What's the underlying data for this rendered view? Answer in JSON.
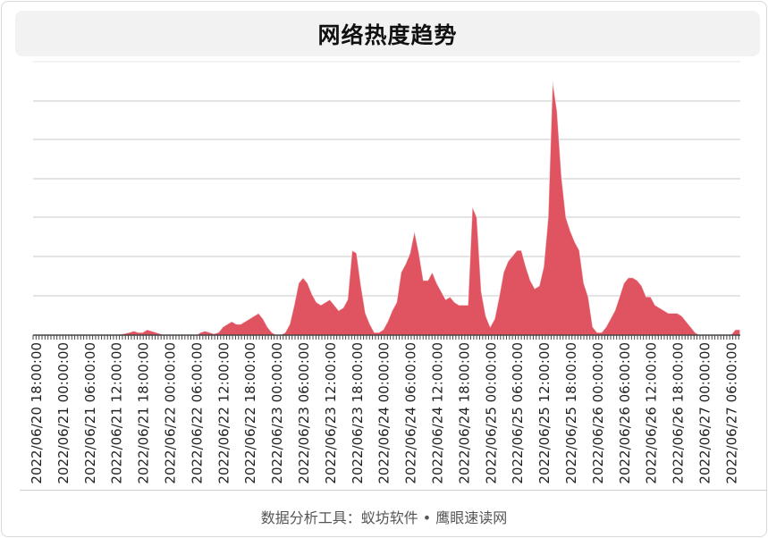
{
  "chart_data": {
    "type": "area",
    "title": "网络热度趋势",
    "xlabel": "",
    "ylabel": "",
    "color": "#e05461",
    "grid": true,
    "ylim": [
      0,
      100
    ],
    "tick_labels": [
      "2022/06/20 18:00:00",
      "2022/06/21 00:00:00",
      "2022/06/21 06:00:00",
      "2022/06/21 12:00:00",
      "2022/06/21 18:00:00",
      "2022/06/22 00:00:00",
      "2022/06/22 06:00:00",
      "2022/06/22 12:00:00",
      "2022/06/22 18:00:00",
      "2022/06/23 00:00:00",
      "2022/06/23 06:00:00",
      "2022/06/23 12:00:00",
      "2022/06/23 18:00:00",
      "2022/06/24 00:00:00",
      "2022/06/24 06:00:00",
      "2022/06/24 12:00:00",
      "2022/06/24 18:00:00",
      "2022/06/25 00:00:00",
      "2022/06/25 06:00:00",
      "2022/06/25 12:00:00",
      "2022/06/25 18:00:00",
      "2022/06/26 00:00:00",
      "2022/06/26 06:00:00",
      "2022/06/26 12:00:00",
      "2022/06/26 18:00:00",
      "2022/06/27 00:00:00",
      "2022/06/27 06:00:00"
    ],
    "points_per_tick": 6,
    "values": [
      0,
      0,
      0,
      0,
      0,
      0,
      0,
      0,
      0,
      0,
      0,
      0,
      0,
      0,
      0,
      0,
      0,
      0,
      0,
      0.3,
      0.6,
      1,
      1.5,
      1,
      1,
      2,
      1.5,
      1,
      0.5,
      0,
      0,
      0,
      0,
      0,
      0,
      0,
      0,
      1,
      1.5,
      1,
      0.5,
      1,
      3,
      4,
      5,
      4,
      4,
      5,
      6,
      7,
      8,
      6,
      3,
      1,
      0,
      0,
      1,
      4,
      11,
      19,
      21,
      19,
      15,
      12,
      11,
      12,
      13,
      11,
      9,
      10,
      13,
      31,
      30,
      18,
      8,
      4,
      1,
      1,
      2,
      5,
      9,
      12,
      23,
      26,
      30,
      38,
      30,
      20,
      20,
      23,
      19,
      16,
      13,
      14,
      12,
      11,
      11,
      11,
      47,
      43,
      16,
      7,
      3,
      6,
      14,
      23,
      27,
      29,
      31,
      31,
      25,
      20,
      17,
      18,
      25,
      43,
      93,
      82,
      58,
      43,
      38,
      34,
      31,
      19,
      14,
      3,
      1,
      1,
      3,
      6,
      9,
      14,
      19,
      21,
      21,
      20,
      18,
      14,
      14,
      11,
      10,
      9,
      8,
      8,
      8,
      7,
      5,
      3,
      1,
      0,
      0,
      0,
      0,
      0,
      0,
      0,
      0,
      2,
      2
    ]
  },
  "footer": {
    "source": "数据分析工具：蚁坊软件 • 鹰眼速读网"
  }
}
